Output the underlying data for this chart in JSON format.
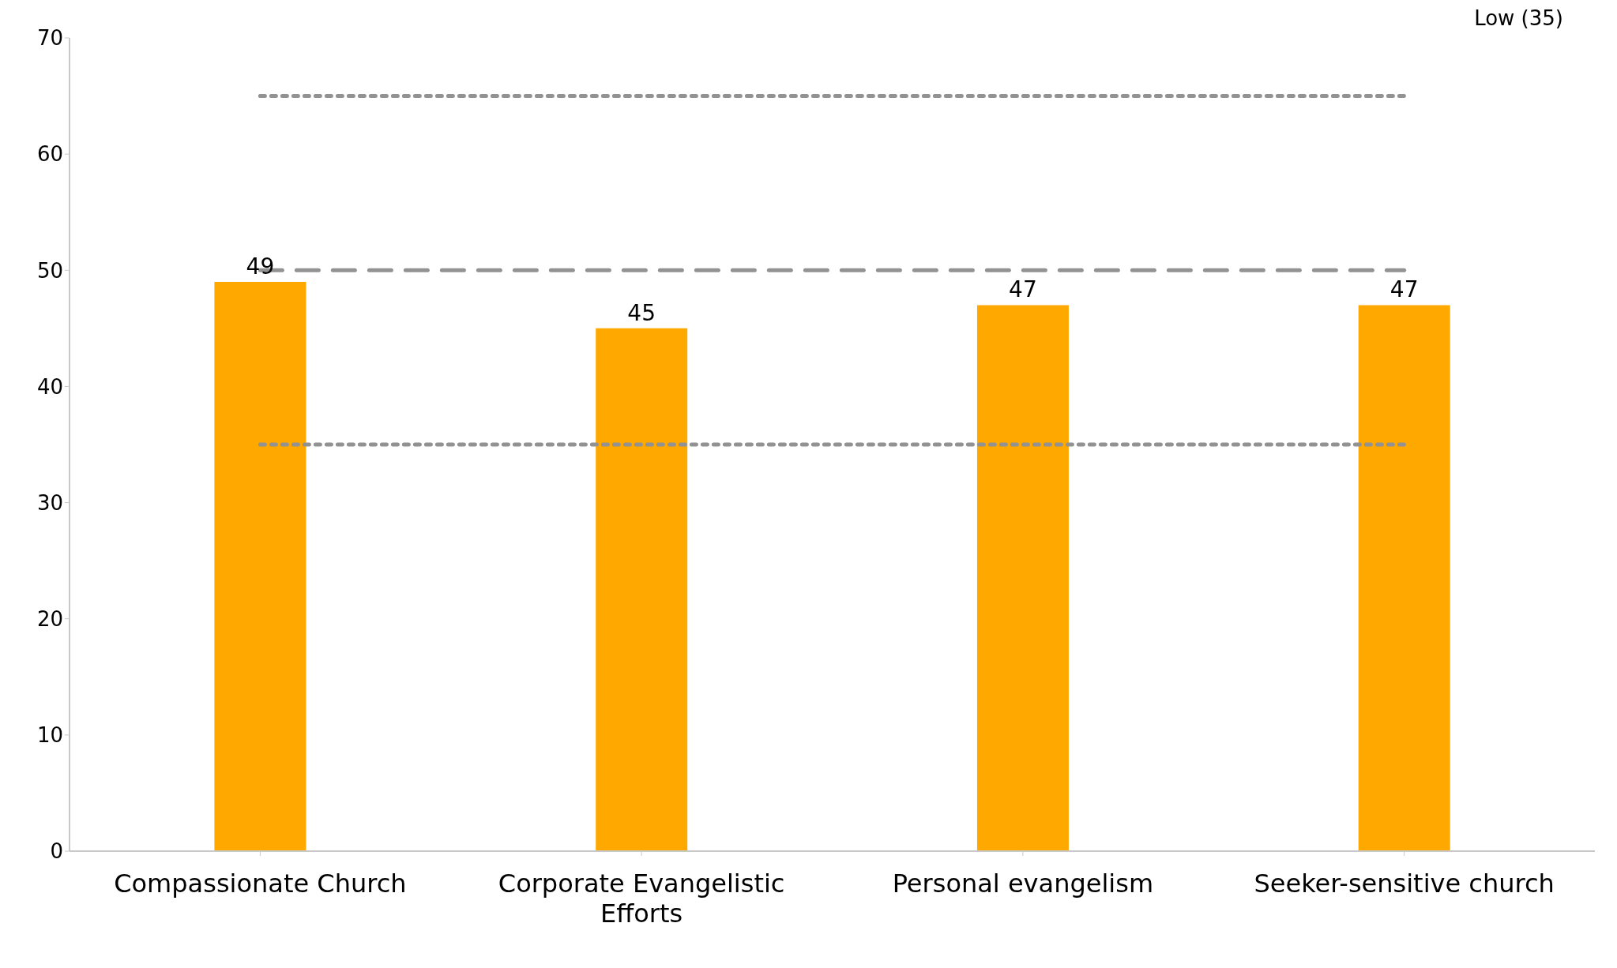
{
  "chart_data": {
    "type": "bar",
    "categories": [
      "Compassionate Church",
      "Corporate Evangelistic Efforts",
      "Personal evangelism",
      "Seeker-sensitive church"
    ],
    "values": [
      49,
      45,
      47,
      47
    ],
    "color": "#ffa800",
    "data_labels": true,
    "ylim": [
      0,
      70
    ],
    "yticks": [
      0,
      10,
      20,
      30,
      40,
      50,
      60,
      70
    ],
    "grid": false,
    "legend": false,
    "ref_lines": [
      {
        "axis": "y",
        "value": 65,
        "color": "#929292",
        "line_style": "dotted"
      },
      {
        "axis": "y",
        "value": 50,
        "color": "#929292",
        "line_style": "dashed"
      },
      {
        "axis": "y",
        "value": 35,
        "color": "#929292",
        "line_style": "dotted"
      }
    ],
    "annotations": [
      "Low (35)"
    ]
  }
}
